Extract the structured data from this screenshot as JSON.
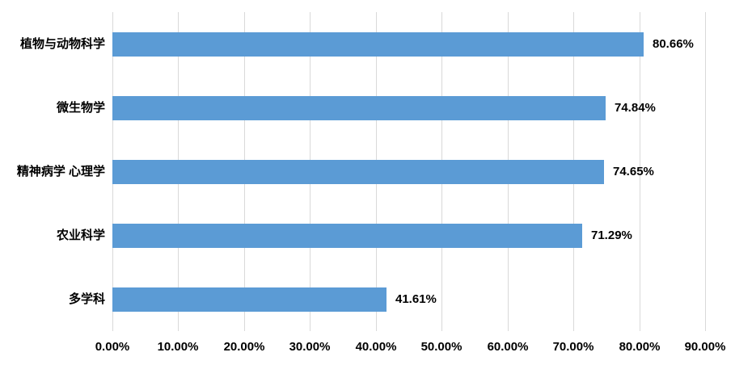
{
  "chart_data": {
    "type": "bar",
    "orientation": "horizontal",
    "categories": [
      "植物与动物科学",
      "微生物学",
      "精神病学 心理学",
      "农业科学",
      "多学科"
    ],
    "values": [
      80.66,
      74.84,
      74.65,
      71.29,
      41.61
    ],
    "value_labels": [
      "80.66%",
      "74.84%",
      "74.65%",
      "71.29%",
      "41.61%"
    ],
    "title": "",
    "xlabel": "",
    "ylabel": "",
    "xlim": [
      0,
      90
    ],
    "xticks": [
      0,
      10,
      20,
      30,
      40,
      50,
      60,
      70,
      80,
      90
    ],
    "xtick_labels": [
      "0.00%",
      "10.00%",
      "20.00%",
      "30.00%",
      "40.00%",
      "50.00%",
      "60.00%",
      "70.00%",
      "80.00%",
      "90.00%"
    ],
    "grid": "vertical",
    "legend": "none",
    "colors": {
      "bar_fill": "#5b9bd5",
      "gridline": "#d9d9d9",
      "label_text": "#000000",
      "background": "#ffffff"
    }
  }
}
